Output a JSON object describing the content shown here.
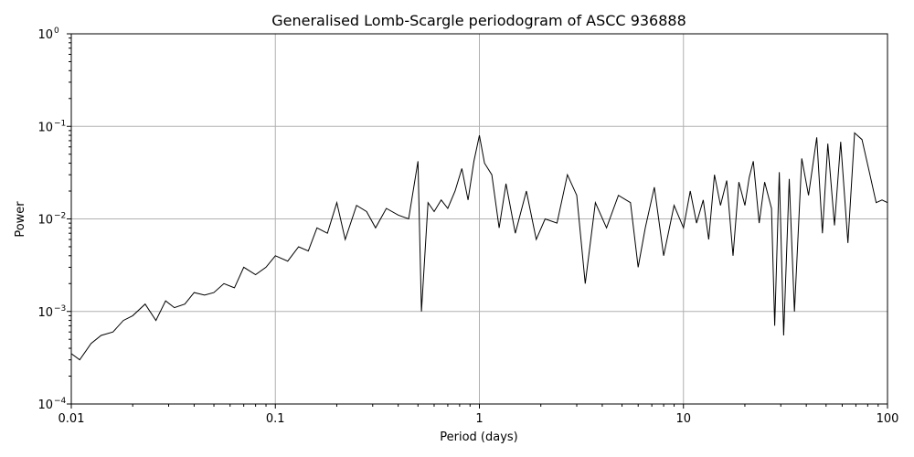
{
  "chart_data": {
    "type": "line",
    "title": "Generalised Lomb-Scargle periodogram of ASCC 936888",
    "xlabel": "Period (days)",
    "ylabel": "Power",
    "xscale": "log",
    "yscale": "log",
    "xlim": [
      0.01,
      100
    ],
    "ylim": [
      0.0001,
      1
    ],
    "grid": true,
    "line_color": "#000000",
    "x_ticks": [
      {
        "value": 0.01,
        "label": "0.01"
      },
      {
        "value": 0.1,
        "label": "0.1"
      },
      {
        "value": 1,
        "label": "1"
      },
      {
        "value": 10,
        "label": "10"
      },
      {
        "value": 100,
        "label": "100"
      }
    ],
    "y_ticks": [
      {
        "value": 0.0001,
        "mantissa": "10",
        "exponent": "−4"
      },
      {
        "value": 0.001,
        "mantissa": "10",
        "exponent": "−3"
      },
      {
        "value": 0.01,
        "mantissa": "10",
        "exponent": "−2"
      },
      {
        "value": 0.1,
        "mantissa": "10",
        "exponent": "−1"
      },
      {
        "value": 1,
        "mantissa": "10",
        "exponent": "0"
      }
    ],
    "series": [
      {
        "x": [
          0.01,
          0.011,
          0.0125,
          0.014,
          0.016,
          0.018,
          0.02,
          0.023,
          0.026,
          0.029,
          0.032,
          0.036,
          0.04,
          0.045,
          0.05,
          0.056,
          0.063,
          0.07,
          0.08,
          0.09,
          0.1,
          0.115,
          0.13,
          0.145,
          0.16,
          0.18,
          0.2,
          0.22,
          0.25,
          0.28,
          0.31,
          0.35,
          0.4,
          0.45,
          0.5,
          0.52,
          0.56,
          0.6,
          0.65,
          0.7,
          0.76,
          0.82,
          0.88,
          0.94,
          1.0,
          1.06,
          1.15,
          1.25,
          1.35,
          1.5,
          1.7,
          1.9,
          2.1,
          2.4,
          2.7,
          3.0,
          3.3,
          3.7,
          4.2,
          4.8,
          5.5,
          6.0,
          6.5,
          7.2,
          8.0,
          9.0,
          10.0,
          10.8,
          11.6,
          12.5,
          13.3,
          14.2,
          15.2,
          16.3,
          17.5,
          18.7,
          20.0,
          21.0,
          22.0,
          23.5,
          25.0,
          27.0,
          28.0,
          29.5,
          31.0,
          33.0,
          35.0,
          38.0,
          41.0,
          45.0,
          48.0,
          51.0,
          55.0,
          59.0,
          64.0,
          69.0,
          75.0,
          82.0,
          88.0,
          94.0,
          100.0
        ],
        "y": [
          0.00035,
          0.0003,
          0.00045,
          0.00055,
          0.0006,
          0.0008,
          0.0009,
          0.0012,
          0.0008,
          0.0013,
          0.0011,
          0.0012,
          0.0016,
          0.0015,
          0.0016,
          0.002,
          0.0018,
          0.003,
          0.0025,
          0.003,
          0.004,
          0.0035,
          0.005,
          0.0045,
          0.008,
          0.007,
          0.015,
          0.006,
          0.014,
          0.012,
          0.008,
          0.013,
          0.011,
          0.01,
          0.042,
          0.001,
          0.015,
          0.012,
          0.016,
          0.013,
          0.02,
          0.035,
          0.016,
          0.042,
          0.08,
          0.04,
          0.03,
          0.008,
          0.024,
          0.007,
          0.02,
          0.006,
          0.01,
          0.009,
          0.03,
          0.018,
          0.002,
          0.015,
          0.008,
          0.018,
          0.015,
          0.003,
          0.008,
          0.022,
          0.004,
          0.014,
          0.008,
          0.02,
          0.009,
          0.016,
          0.006,
          0.03,
          0.014,
          0.026,
          0.004,
          0.025,
          0.014,
          0.028,
          0.042,
          0.009,
          0.025,
          0.013,
          0.0007,
          0.032,
          0.00055,
          0.027,
          0.001,
          0.045,
          0.018,
          0.076,
          0.007,
          0.065,
          0.0085,
          0.068,
          0.0055,
          0.085,
          0.072,
          0.03,
          0.015,
          0.016,
          0.015
        ]
      }
    ]
  }
}
